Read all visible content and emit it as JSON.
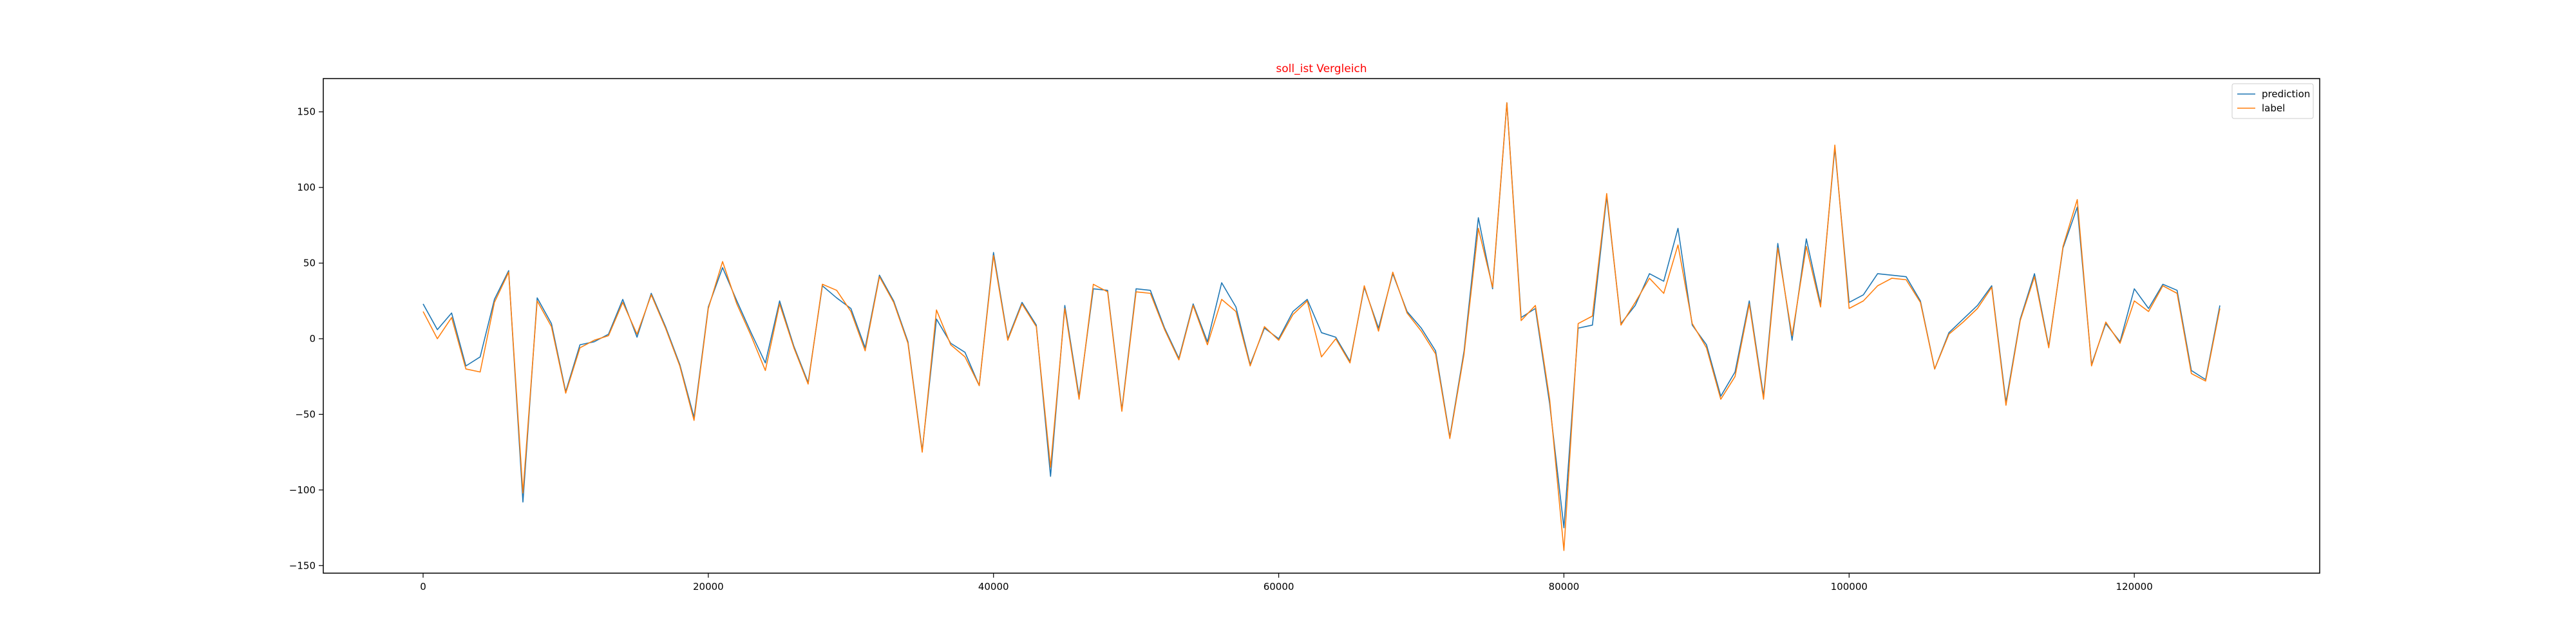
{
  "chart_data": {
    "type": "line",
    "title": "soll_ist Vergleich",
    "title_color": "#ff0000",
    "xlabel": "",
    "ylabel": "",
    "xlim": [
      -7000,
      133000
    ],
    "ylim": [
      -155,
      172
    ],
    "xticks": [
      0,
      20000,
      40000,
      60000,
      80000,
      100000,
      120000
    ],
    "xtick_labels": [
      "0",
      "20000",
      "40000",
      "60000",
      "80000",
      "100000",
      "120000"
    ],
    "yticks": [
      -150,
      -100,
      -50,
      0,
      50,
      100,
      150
    ],
    "ytick_labels": [
      "−150",
      "−100",
      "−50",
      "0",
      "50",
      "100",
      "150"
    ],
    "grid": false,
    "legend_position": "top-right",
    "x": [
      0,
      1000,
      2000,
      3000,
      4000,
      5000,
      6000,
      7000,
      8000,
      9000,
      10000,
      11000,
      12000,
      13000,
      14000,
      15000,
      16000,
      17000,
      18000,
      19000,
      20000,
      21000,
      22000,
      23000,
      24000,
      25000,
      26000,
      27000,
      28000,
      29000,
      30000,
      31000,
      32000,
      33000,
      34000,
      35000,
      36000,
      37000,
      38000,
      39000,
      40000,
      41000,
      42000,
      43000,
      44000,
      45000,
      46000,
      47000,
      48000,
      49000,
      50000,
      51000,
      52000,
      53000,
      54000,
      55000,
      56000,
      57000,
      58000,
      59000,
      60000,
      61000,
      62000,
      63000,
      64000,
      65000,
      66000,
      67000,
      68000,
      69000,
      70000,
      71000,
      72000,
      73000,
      74000,
      75000,
      76000,
      77000,
      78000,
      79000,
      80000,
      81000,
      82000,
      83000,
      84000,
      85000,
      86000,
      87000,
      88000,
      89000,
      90000,
      91000,
      92000,
      93000,
      94000,
      95000,
      96000,
      97000,
      98000,
      99000,
      100000,
      101000,
      102000,
      103000,
      104000,
      105000,
      106000,
      107000,
      108000,
      109000,
      110000,
      111000,
      112000,
      113000,
      114000,
      115000,
      116000,
      117000,
      118000,
      119000,
      120000,
      121000,
      122000,
      123000,
      124000,
      125000,
      126000
    ],
    "series": [
      {
        "name": "prediction",
        "color": "#1f77b4",
        "values": [
          23,
          6,
          17,
          -18,
          -12,
          26,
          45,
          -108,
          27,
          10,
          -35,
          -4,
          -2,
          3,
          26,
          1,
          30,
          8,
          -17,
          -52,
          21,
          47,
          25,
          4,
          -16,
          25,
          -5,
          -29,
          35,
          27,
          20,
          -6,
          42,
          25,
          -2,
          -74,
          13,
          -3,
          -9,
          -31,
          57,
          0,
          24,
          9,
          -91,
          22,
          -38,
          33,
          32,
          -47,
          33,
          32,
          7,
          -13,
          23,
          -2,
          37,
          21,
          -17,
          7,
          0,
          18,
          26,
          4,
          1,
          -15,
          34,
          7,
          43,
          18,
          7,
          -8,
          -65,
          -8,
          80,
          33,
          156,
          14,
          20,
          -43,
          -125,
          7,
          9,
          94,
          10,
          22,
          43,
          38,
          73,
          9,
          -4,
          -38,
          -22,
          25,
          -38,
          63,
          -1,
          66,
          23,
          126,
          24,
          29,
          43,
          42,
          41,
          25,
          -20,
          4,
          13,
          22,
          35,
          -42,
          13,
          43,
          -5,
          60,
          87,
          -17,
          10,
          -2,
          33,
          20,
          36,
          32,
          -21,
          -27,
          22
        ]
      },
      {
        "name": "label",
        "color": "#ff7f0e",
        "values": [
          18,
          0,
          14,
          -20,
          -22,
          24,
          44,
          -102,
          25,
          8,
          -36,
          -6,
          -1,
          2,
          24,
          3,
          29,
          7,
          -18,
          -54,
          20,
          51,
          23,
          2,
          -21,
          23,
          -6,
          -30,
          36,
          32,
          18,
          -8,
          41,
          24,
          -3,
          -75,
          19,
          -4,
          -12,
          -31,
          55,
          -1,
          23,
          8,
          -85,
          20,
          -40,
          36,
          31,
          -48,
          31,
          30,
          6,
          -14,
          22,
          -4,
          26,
          18,
          -18,
          8,
          -1,
          16,
          25,
          -12,
          0,
          -16,
          35,
          5,
          44,
          17,
          5,
          -10,
          -66,
          -10,
          73,
          34,
          156,
          12,
          22,
          -40,
          -140,
          10,
          15,
          96,
          9,
          24,
          40,
          30,
          62,
          10,
          -6,
          -40,
          -25,
          23,
          -40,
          60,
          2,
          61,
          21,
          128,
          20,
          25,
          35,
          40,
          39,
          24,
          -20,
          3,
          11,
          20,
          34,
          -44,
          12,
          41,
          -6,
          61,
          92,
          -18,
          11,
          -3,
          25,
          18,
          35,
          30,
          -23,
          -28,
          20
        ]
      }
    ]
  }
}
